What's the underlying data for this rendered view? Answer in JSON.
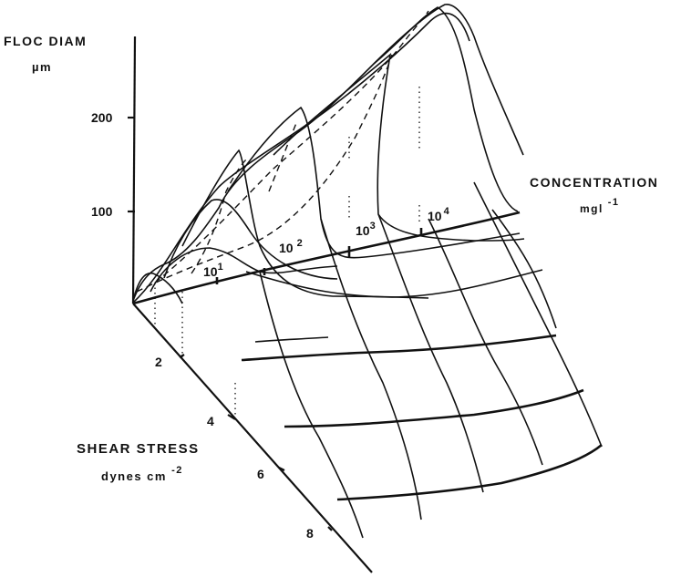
{
  "labels": {
    "y_axis_title": "FLOC DIAM",
    "y_axis_unit": "µm",
    "x_axis_title": "SHEAR STRESS",
    "x_axis_unit_base": "dynes cm",
    "x_axis_unit_exp": "-2",
    "z_axis_title": "CONCENTRATION",
    "z_axis_unit_base": "mgl",
    "z_axis_unit_exp": "-1"
  },
  "ticks": {
    "floc_diam": [
      "200",
      "100"
    ],
    "shear_stress": [
      "2",
      "4",
      "6",
      "8"
    ],
    "concentration": [
      {
        "base": "10",
        "exp": "1"
      },
      {
        "base": "10",
        "exp": "2"
      },
      {
        "base": "10",
        "exp": "3"
      },
      {
        "base": "10",
        "exp": "4"
      }
    ]
  },
  "chart_data": {
    "type": "surface",
    "xlabel": "SHEAR STRESS dynes cm^-2",
    "ylabel": "FLOC DIAM µm",
    "zlabel": "CONCENTRATION mgl^-1",
    "shear_stress_ticks": [
      2,
      4,
      6,
      8
    ],
    "floc_diam_ticks": [
      100,
      200
    ],
    "concentration_ticks": [
      10,
      100,
      1000,
      10000
    ],
    "concentration_scale": "log",
    "grid": false,
    "series": [
      {
        "concentration": 1,
        "peak_shear_stress": 0.2,
        "peak_floc_diam": 30
      },
      {
        "concentration": 10,
        "peak_shear_stress": 0.6,
        "peak_floc_diam": 55
      },
      {
        "concentration": 100,
        "peak_shear_stress": 1.2,
        "peak_floc_diam": 115
      },
      {
        "concentration": 1000,
        "peak_shear_stress": 2.4,
        "peak_floc_diam": 160
      },
      {
        "concentration": 3000,
        "peak_shear_stress": 3.4,
        "peak_floc_diam": 195
      },
      {
        "concentration": 10000,
        "peak_shear_stress": 4.6,
        "peak_floc_diam": 240
      }
    ]
  }
}
